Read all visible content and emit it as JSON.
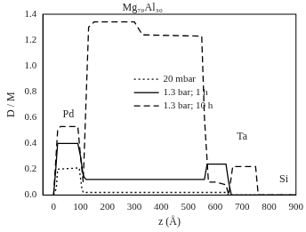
{
  "chart_data": {
    "type": "line",
    "x_label": "z (Å)",
    "y_label": "D / M",
    "xlim": [
      -40,
      900
    ],
    "xticks": [
      0,
      100,
      200,
      300,
      400,
      500,
      600,
      700,
      800,
      900
    ],
    "ylim": [
      0,
      1.4
    ],
    "yticks": [
      {
        "value": 0,
        "label": "0.0"
      },
      {
        "value": 0.2,
        "label": "0.2"
      },
      {
        "value": 0.4,
        "label": "0.4"
      },
      {
        "value": 0.6,
        "label": "0.6"
      },
      {
        "value": 0.8,
        "label": "0.8"
      },
      {
        "value": 1.0,
        "label": "1.0"
      },
      {
        "value": 1.2,
        "label": "1.2"
      },
      {
        "value": 1.4,
        "label": "1.4"
      }
    ],
    "grid": false,
    "legend": "upper center",
    "series": [
      {
        "name": "20 mbar",
        "color": "#000000",
        "line_style": "dotted",
        "marker": "none",
        "x": [
          0,
          10,
          15,
          95,
          105,
          110,
          560,
          570,
          640,
          650,
          900
        ],
        "values": [
          0,
          0.05,
          0.2,
          0.21,
          0.05,
          0.02,
          0.02,
          0.02,
          0.02,
          0,
          0
        ]
      },
      {
        "name": "1.3 bar; 1 h",
        "color": "#000000",
        "line_style": "solid",
        "marker": "none",
        "x": [
          0,
          8,
          15,
          90,
          100,
          110,
          120,
          560,
          570,
          580,
          640,
          650,
          660,
          900
        ],
        "values": [
          0,
          0.2,
          0.4,
          0.4,
          0.3,
          0.15,
          0.12,
          0.12,
          0.24,
          0.24,
          0.24,
          0.1,
          0,
          0
        ]
      },
      {
        "name": "1.3 bar; 10 h",
        "color": "#000000",
        "line_style": "dashed",
        "marker": "none",
        "x": [
          0,
          15,
          25,
          90,
          100,
          110,
          130,
          150,
          300,
          330,
          550,
          560,
          575,
          600,
          640,
          650,
          665,
          670,
          750,
          760,
          900
        ],
        "values": [
          0,
          0.5,
          0.53,
          0.53,
          0.3,
          0.1,
          1.3,
          1.34,
          1.34,
          1.24,
          1.23,
          0.6,
          0.1,
          0.1,
          0.08,
          0,
          0.22,
          0.22,
          0.22,
          0,
          0
        ]
      }
    ],
    "annotations": [
      {
        "text": "Mg₇₀Al₃₀",
        "x": 330,
        "y": 1.4
      },
      {
        "text": "Pd",
        "x": 55,
        "y": 0.62
      },
      {
        "text": "Ta",
        "x": 700,
        "y": 0.45
      },
      {
        "text": "Si",
        "x": 855,
        "y": 0.12
      }
    ]
  }
}
